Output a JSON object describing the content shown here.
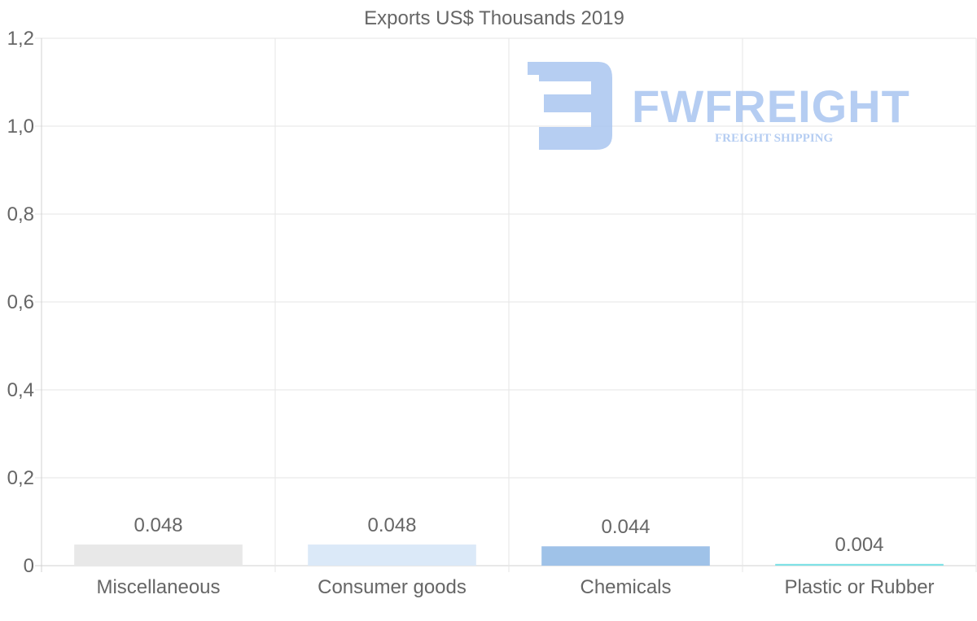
{
  "chart_data": {
    "type": "bar",
    "title": "Exports US$ Thousands 2019",
    "categories": [
      "Miscellaneous",
      "Consumer goods",
      "Chemicals",
      "Plastic or Rubber"
    ],
    "values": [
      0.048,
      0.048,
      0.044,
      0.004
    ],
    "value_labels": [
      "0.048",
      "0.048",
      "0.044",
      "0.004"
    ],
    "colors": [
      "#e8e8e8",
      "#dbe9f8",
      "#9fc2e8",
      "#7fe1e6"
    ],
    "ylim": [
      0,
      1.2
    ],
    "yticks": [
      {
        "value": 0,
        "label": "0"
      },
      {
        "value": 0.2,
        "label": "0,2"
      },
      {
        "value": 0.4,
        "label": "0,4"
      },
      {
        "value": 0.6,
        "label": "0,6"
      },
      {
        "value": 0.8,
        "label": "0,8"
      },
      {
        "value": 1.0,
        "label": "1,0"
      },
      {
        "value": 1.2,
        "label": "1,2"
      }
    ],
    "xlabel": "",
    "ylabel": "",
    "grid": true
  },
  "watermark": {
    "brand": "FWFREIGHT",
    "tagline": "FREIGHT SHIPPING",
    "color": "#a9c5f0"
  }
}
